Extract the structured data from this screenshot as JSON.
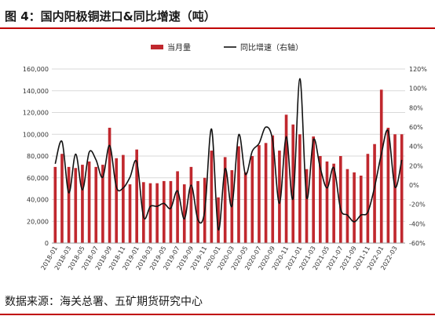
{
  "title": "图 4：国内阳极铜进口&同比增速（吨）",
  "source": "数据来源：海关总署、五矿期货研究中心",
  "colors": {
    "bar": "#c0282e",
    "line": "#111111",
    "accent_rule": "#c00000",
    "grid": "#d9d9d9"
  },
  "chart_data": {
    "type": "bar",
    "title": "图 4：国内阳极铜进口&同比增速（吨）",
    "xlabel": "",
    "ylabel": "",
    "legend": {
      "position": "top-center",
      "entries": [
        "当月量",
        "同比增速（右轴）"
      ]
    },
    "grid": true,
    "x_tick_labels": [
      "2018-01",
      "2018-03",
      "2018-05",
      "2018-07",
      "2018-09",
      "2018-11",
      "2019-01",
      "2019-03",
      "2019-05",
      "2019-07",
      "2019-09",
      "2019-11",
      "2020-01",
      "2020-03",
      "2020-05",
      "2020-07",
      "2020-09",
      "2020-11",
      "2021-01",
      "2021-03",
      "2021-05",
      "2021-07",
      "2021-09",
      "2021-11",
      "2022-01",
      "2022-03"
    ],
    "y_left": {
      "ylim": [
        0,
        160000
      ],
      "ticks": [
        "0",
        "20,000",
        "40,000",
        "60,000",
        "80,000",
        "100,000",
        "120,000",
        "140,000",
        "160,000"
      ]
    },
    "y_right": {
      "ylim": [
        -60,
        120
      ],
      "ticks": [
        "-60%",
        "-40%",
        "-20%",
        "0%",
        "20%",
        "40%",
        "60%",
        "80%",
        "100%",
        "120%"
      ]
    },
    "categories": [
      "2018-01",
      "2018-02",
      "2018-03",
      "2018-04",
      "2018-05",
      "2018-06",
      "2018-07",
      "2018-08",
      "2018-09",
      "2018-10",
      "2018-11",
      "2018-12",
      "2019-01",
      "2019-02",
      "2019-03",
      "2019-04",
      "2019-05",
      "2019-06",
      "2019-07",
      "2019-08",
      "2019-09",
      "2019-10",
      "2019-11",
      "2019-12",
      "2020-01",
      "2020-02",
      "2020-03",
      "2020-04",
      "2020-05",
      "2020-06",
      "2020-07",
      "2020-08",
      "2020-09",
      "2020-10",
      "2020-11",
      "2020-12",
      "2021-01",
      "2021-02",
      "2021-03",
      "2021-04",
      "2021-05",
      "2021-06",
      "2021-07",
      "2021-08",
      "2021-09",
      "2021-10",
      "2021-11",
      "2021-12",
      "2022-01",
      "2022-02",
      "2022-03",
      "2022-04"
    ],
    "series": [
      {
        "name": "当月量",
        "type": "bar",
        "axis": "left",
        "values": [
          70000,
          82000,
          70000,
          69000,
          72000,
          75000,
          70000,
          72000,
          106000,
          78000,
          81000,
          54000,
          86000,
          56000,
          55000,
          55000,
          57000,
          57000,
          66000,
          54000,
          70000,
          57000,
          60000,
          85000,
          42000,
          79000,
          67000,
          89000,
          65000,
          80000,
          90000,
          92000,
          99000,
          85000,
          118000,
          109000,
          100000,
          68000,
          98000,
          80000,
          75000,
          73000,
          80000,
          68000,
          65000,
          62000,
          82000,
          91000,
          141000,
          106000,
          100000,
          100000
        ]
      },
      {
        "name": "同比增速（右轴）",
        "type": "line",
        "axis": "right",
        "values": [
          22,
          45,
          -8,
          32,
          -5,
          34,
          26,
          8,
          41,
          -2,
          -3,
          8,
          24,
          -33,
          -22,
          -22,
          -19,
          -24,
          -6,
          -35,
          0,
          -36,
          -27,
          58,
          -46,
          17,
          -22,
          52,
          11,
          35,
          43,
          60,
          46,
          -19,
          50,
          -14,
          110,
          -13,
          47,
          18,
          -3,
          18,
          -25,
          -31,
          -38,
          -31,
          -28,
          -2,
          32,
          56,
          -2,
          26
        ]
      }
    ]
  }
}
